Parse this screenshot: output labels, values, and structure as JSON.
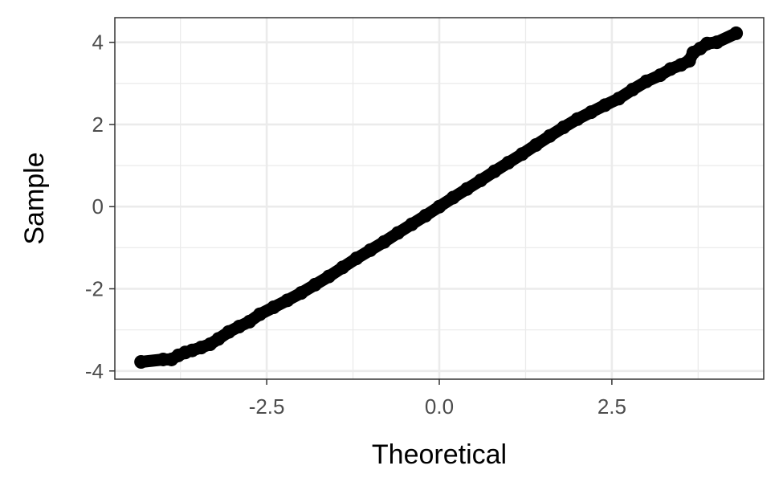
{
  "chart_data": {
    "type": "scatter",
    "title": "",
    "xlabel": "Theoretical",
    "ylabel": "Sample",
    "xlim": [
      -4.7,
      4.7
    ],
    "ylim": [
      -4.2,
      4.6
    ],
    "x_ticks": [
      -2.5,
      0.0,
      2.5
    ],
    "x_tick_labels": [
      "-2.5",
      "0.0",
      "2.5"
    ],
    "y_ticks": [
      -4,
      -2,
      0,
      2,
      4
    ],
    "y_tick_labels": [
      "-4",
      "-2",
      "0",
      "2",
      "4"
    ],
    "grid": true,
    "point_color": "#000000",
    "series": [
      {
        "points": [
          [
            -4.32,
            -3.78
          ],
          [
            -4.0,
            -3.72
          ],
          [
            -3.88,
            -3.72
          ],
          [
            -3.78,
            -3.62
          ],
          [
            -3.68,
            -3.55
          ],
          [
            -3.58,
            -3.5
          ],
          [
            -3.45,
            -3.43
          ],
          [
            -3.32,
            -3.35
          ],
          [
            -3.2,
            -3.22
          ],
          [
            -3.05,
            -3.05
          ],
          [
            -2.9,
            -2.92
          ],
          [
            -2.75,
            -2.8
          ],
          [
            -2.6,
            -2.62
          ],
          [
            -2.4,
            -2.45
          ],
          [
            -2.2,
            -2.28
          ],
          [
            -2.0,
            -2.1
          ],
          [
            -1.8,
            -1.9
          ],
          [
            -1.6,
            -1.7
          ],
          [
            -1.4,
            -1.48
          ],
          [
            -1.2,
            -1.26
          ],
          [
            -1.0,
            -1.06
          ],
          [
            -0.8,
            -0.86
          ],
          [
            -0.6,
            -0.64
          ],
          [
            -0.4,
            -0.43
          ],
          [
            -0.2,
            -0.22
          ],
          [
            0.0,
            0.0
          ],
          [
            0.2,
            0.22
          ],
          [
            0.4,
            0.43
          ],
          [
            0.6,
            0.64
          ],
          [
            0.8,
            0.86
          ],
          [
            1.0,
            1.07
          ],
          [
            1.2,
            1.28
          ],
          [
            1.4,
            1.5
          ],
          [
            1.6,
            1.72
          ],
          [
            1.8,
            1.93
          ],
          [
            2.0,
            2.13
          ],
          [
            2.2,
            2.3
          ],
          [
            2.4,
            2.47
          ],
          [
            2.6,
            2.63
          ],
          [
            2.8,
            2.85
          ],
          [
            3.0,
            3.05
          ],
          [
            3.2,
            3.2
          ],
          [
            3.35,
            3.35
          ],
          [
            3.5,
            3.45
          ],
          [
            3.62,
            3.55
          ],
          [
            3.68,
            3.75
          ],
          [
            3.78,
            3.85
          ],
          [
            3.88,
            3.97
          ],
          [
            4.02,
            4.0
          ],
          [
            4.3,
            4.22
          ]
        ]
      }
    ]
  }
}
